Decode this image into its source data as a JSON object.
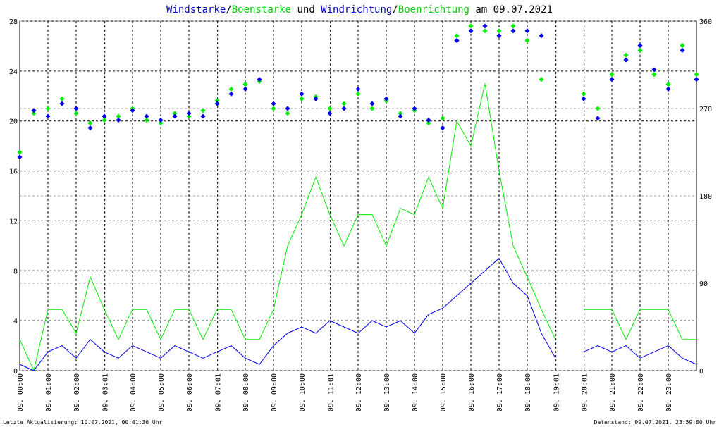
{
  "chart_data": {
    "type": "line",
    "title_parts": [
      {
        "text": "Windstarke",
        "color": "#0000cc"
      },
      {
        "text": "/",
        "color": "#000000"
      },
      {
        "text": "Boenstarke",
        "color": "#00cc00"
      },
      {
        "text": " und ",
        "color": "#000000"
      },
      {
        "text": "Windrichtung",
        "color": "#0000cc"
      },
      {
        "text": "/",
        "color": "#000000"
      },
      {
        "text": "Boenrichtung",
        "color": "#00cc00"
      },
      {
        "text": " am 09.07.2021",
        "color": "#000000"
      }
    ],
    "footer_left": "Letzte Aktualisierung: 10.07.2021, 00:01:36 Uhr",
    "footer_right": "Datenstand: 09.07.2021, 23:59:00 Uhr",
    "x": [
      0,
      0.5,
      1,
      1.5,
      2,
      2.5,
      3,
      3.5,
      4,
      4.5,
      5,
      5.5,
      6,
      6.5,
      7,
      7.5,
      8,
      8.5,
      9,
      9.5,
      10,
      10.5,
      11,
      11.5,
      12,
      12.5,
      13,
      13.5,
      14,
      14.5,
      15,
      15.5,
      16,
      16.5,
      17,
      17.5,
      18,
      18.5,
      19,
      19.5,
      20,
      20.5,
      21,
      21.5,
      22,
      22.5,
      23,
      23.5,
      24
    ],
    "xlim": [
      0,
      24
    ],
    "xticks": [
      {
        "value": 0,
        "label": "09. 00:00"
      },
      {
        "value": 1,
        "label": "09. 01:00"
      },
      {
        "value": 2,
        "label": "09. 02:00"
      },
      {
        "value": 3.017,
        "label": "09. 03:01"
      },
      {
        "value": 4,
        "label": "09. 04:00"
      },
      {
        "value": 5,
        "label": "09. 05:00"
      },
      {
        "value": 6,
        "label": "09. 06:00"
      },
      {
        "value": 7.017,
        "label": "09. 07:01"
      },
      {
        "value": 8,
        "label": "09. 08:00"
      },
      {
        "value": 9,
        "label": "09. 09:00"
      },
      {
        "value": 10,
        "label": "09. 10:00"
      },
      {
        "value": 11.017,
        "label": "09. 11:01"
      },
      {
        "value": 12,
        "label": "09. 12:00"
      },
      {
        "value": 13,
        "label": "09. 13:00"
      },
      {
        "value": 14,
        "label": "09. 14:00"
      },
      {
        "value": 15,
        "label": "09. 15:00"
      },
      {
        "value": 16,
        "label": "09. 16:00"
      },
      {
        "value": 17,
        "label": "09. 17:00"
      },
      {
        "value": 18,
        "label": "09. 18:00"
      },
      {
        "value": 19.017,
        "label": "09. 19:01"
      },
      {
        "value": 20.017,
        "label": "09. 20:01"
      },
      {
        "value": 21,
        "label": "09. 21:00"
      },
      {
        "value": 22,
        "label": "09. 22:00"
      },
      {
        "value": 23,
        "label": "09. 23:00"
      }
    ],
    "ylim": [
      0,
      28
    ],
    "yticks": [
      0,
      4,
      8,
      12,
      16,
      20,
      24,
      28
    ],
    "y2lim": [
      0,
      360
    ],
    "y2ticks": [
      0,
      90,
      180,
      270,
      360
    ],
    "grid": true,
    "series": [
      {
        "name": "Boenstarke",
        "color": "#00ee00",
        "style": "line",
        "values": [
          2.5,
          0,
          4.9,
          4.9,
          3,
          7.5,
          4.9,
          2.5,
          4.9,
          4.9,
          2.5,
          4.9,
          4.9,
          2.5,
          4.9,
          4.9,
          2.5,
          2.5,
          4.9,
          10,
          12.5,
          15.5,
          12.5,
          10,
          12.5,
          12.5,
          10,
          13,
          12.5,
          15.5,
          13,
          20,
          18,
          23,
          16,
          10,
          7.5,
          4.9,
          2.5,
          null,
          4.9,
          4.9,
          4.9,
          2.5,
          4.9,
          4.9,
          4.9,
          2.5,
          2.5
        ]
      },
      {
        "name": "Windstarke",
        "color": "#0000ee",
        "style": "line",
        "values": [
          0.5,
          0,
          1.5,
          2,
          1,
          2.5,
          1.5,
          1,
          2,
          1.5,
          1,
          2,
          1.5,
          1,
          1.5,
          2,
          1,
          0.5,
          2,
          3,
          3.5,
          3,
          4,
          3.5,
          3,
          4,
          3.5,
          4,
          3,
          4.5,
          5,
          6,
          7,
          8,
          9,
          7,
          6,
          3,
          1,
          null,
          1.5,
          2,
          1.5,
          2,
          1,
          1.5,
          2,
          1,
          0.5
        ]
      },
      {
        "name": "Boenrichtung",
        "color": "#00ee00",
        "style": "dots",
        "axis": "y2",
        "values": [
          225,
          265,
          270,
          280,
          265,
          255,
          258,
          262,
          270,
          258,
          255,
          265,
          262,
          268,
          278,
          290,
          295,
          298,
          270,
          265,
          280,
          282,
          270,
          275,
          285,
          270,
          278,
          265,
          268,
          255,
          260,
          345,
          355,
          350,
          350,
          355,
          340,
          300,
          null,
          null,
          285,
          270,
          305,
          325,
          330,
          305,
          295,
          335,
          305
        ]
      },
      {
        "name": "Windrichtung",
        "color": "#0000ee",
        "style": "dots",
        "axis": "y2",
        "values": [
          220,
          268,
          262,
          275,
          270,
          250,
          262,
          258,
          268,
          262,
          258,
          262,
          265,
          262,
          275,
          285,
          290,
          300,
          275,
          270,
          285,
          280,
          265,
          270,
          290,
          275,
          280,
          262,
          270,
          258,
          250,
          340,
          350,
          355,
          345,
          350,
          350,
          345,
          null,
          null,
          280,
          260,
          300,
          320,
          335,
          310,
          290,
          330,
          300
        ]
      }
    ]
  }
}
